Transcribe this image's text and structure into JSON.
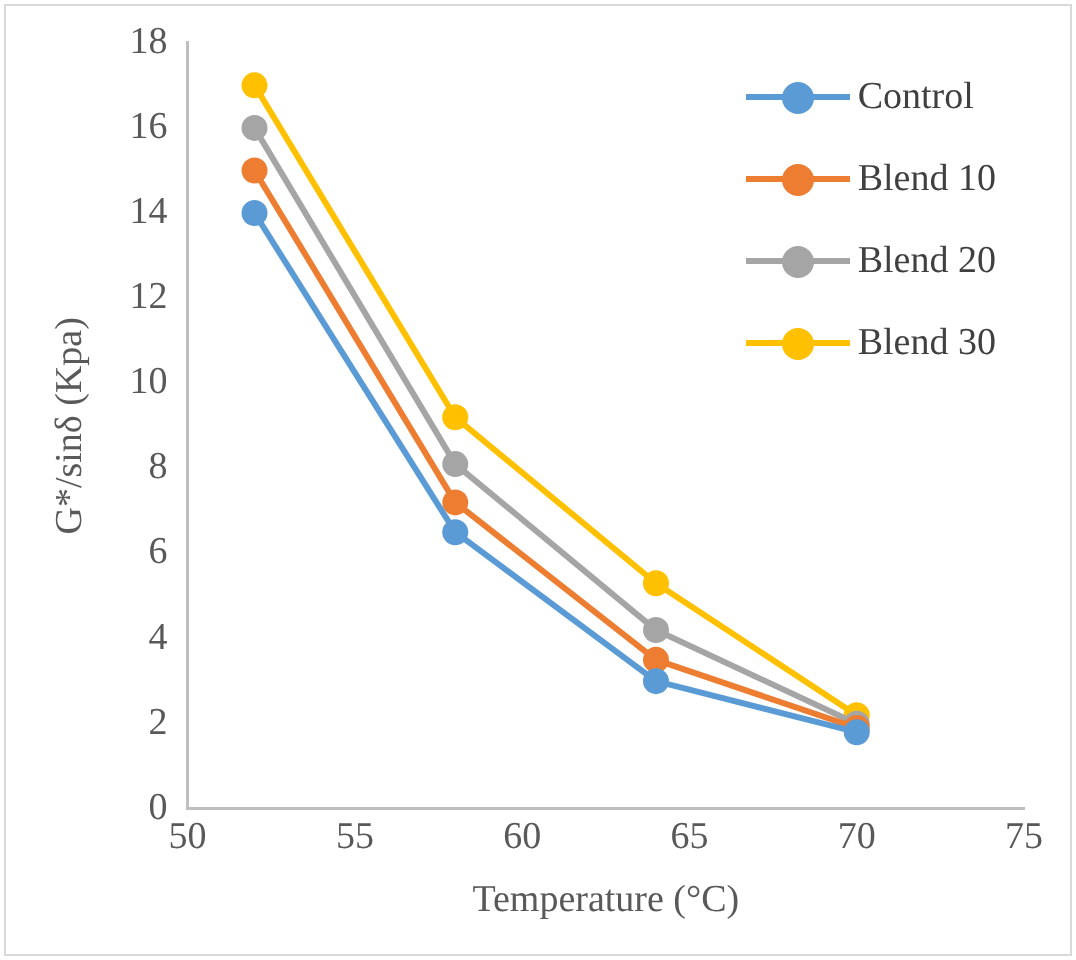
{
  "chart_data": {
    "type": "line",
    "xlabel": "Temperature (°C)",
    "ylabel": "G*/sinδ (Kpa)",
    "x": [
      52,
      58,
      64,
      70
    ],
    "series": [
      {
        "name": "Control",
        "color": "#5b9bd5",
        "values": [
          14,
          6.5,
          3,
          1.8
        ]
      },
      {
        "name": "Blend 10",
        "color": "#ed7d31",
        "values": [
          15,
          7.2,
          3.5,
          1.9
        ]
      },
      {
        "name": "Blend 20",
        "color": "#a5a5a5",
        "values": [
          16,
          8.1,
          4.2,
          2
        ]
      },
      {
        "name": "Blend 30",
        "color": "#ffc000",
        "values": [
          17,
          9.2,
          5.3,
          2.2
        ]
      }
    ],
    "xlim": [
      50,
      75
    ],
    "xticks": [
      50,
      55,
      60,
      65,
      70,
      75
    ],
    "ylim": [
      0,
      18
    ],
    "yticks": [
      0,
      2,
      4,
      6,
      8,
      10,
      12,
      14,
      16,
      18
    ],
    "grid": false,
    "legend": "top right",
    "marker": "circle",
    "line_style": "solid"
  }
}
